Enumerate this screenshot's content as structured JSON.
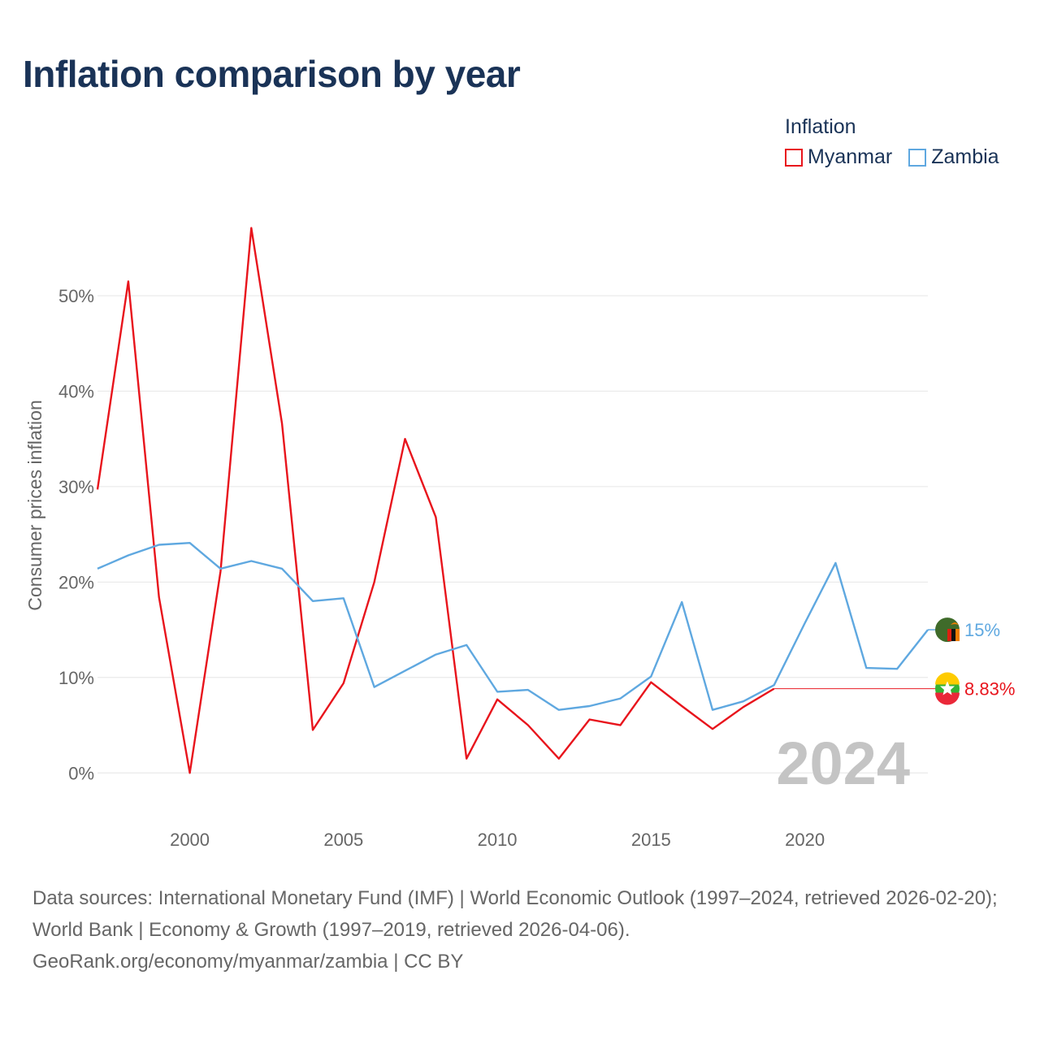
{
  "header": {
    "title": "Inflation comparison by year"
  },
  "legend": {
    "title": "Inflation",
    "items": [
      {
        "name": "Myanmar",
        "color": "#e8141c"
      },
      {
        "name": "Zambia",
        "color": "#5fa8e0"
      }
    ]
  },
  "chart_data": {
    "type": "line",
    "title": "Inflation comparison by year",
    "ylabel": "Consumer prices inflation",
    "xlabel": "",
    "xlim": [
      1997,
      2024
    ],
    "ylim": [
      -5,
      58
    ],
    "yticks": [
      0,
      10,
      20,
      30,
      40,
      50
    ],
    "ytick_labels": [
      "0%",
      "10%",
      "20%",
      "30%",
      "40%",
      "50%"
    ],
    "xticks": [
      2000,
      2005,
      2010,
      2015,
      2020
    ],
    "xtick_labels": [
      "2000",
      "2005",
      "2010",
      "2015",
      "2020"
    ],
    "year_watermark": "2024",
    "series": [
      {
        "name": "Myanmar",
        "color": "#e8141c",
        "x": [
          1997,
          1998,
          1999,
          2000,
          2001,
          2002,
          2003,
          2004,
          2005,
          2006,
          2007,
          2008,
          2009,
          2010,
          2011,
          2012,
          2013,
          2014,
          2015,
          2016,
          2017,
          2018,
          2019
        ],
        "values": [
          29.7,
          51.5,
          18.4,
          0.0,
          21.1,
          57.1,
          36.6,
          4.5,
          9.4,
          20.0,
          35.0,
          26.8,
          1.5,
          7.7,
          5.0,
          1.5,
          5.6,
          5.0,
          9.5,
          7.0,
          4.6,
          6.9,
          8.83
        ],
        "projection": {
          "x": [
            2019,
            2024
          ],
          "values": [
            8.83,
            8.83
          ]
        },
        "end_label": "8.83%",
        "marker_icon": "myanmar-flag-icon"
      },
      {
        "name": "Zambia",
        "color": "#5fa8e0",
        "x": [
          1997,
          1998,
          1999,
          2000,
          2001,
          2002,
          2003,
          2004,
          2005,
          2006,
          2007,
          2008,
          2009,
          2010,
          2011,
          2012,
          2013,
          2014,
          2015,
          2016,
          2017,
          2018,
          2019,
          2020,
          2021,
          2022,
          2023,
          2024
        ],
        "values": [
          21.4,
          22.8,
          23.9,
          24.1,
          21.4,
          22.2,
          21.4,
          18.0,
          18.3,
          9.0,
          10.7,
          12.4,
          13.4,
          8.5,
          8.7,
          6.6,
          7.0,
          7.8,
          10.1,
          17.9,
          6.6,
          7.5,
          9.2,
          15.7,
          22.0,
          11.0,
          10.9,
          15.0
        ],
        "end_label": "15%",
        "marker_icon": "zambia-flag-icon"
      }
    ]
  },
  "footer": {
    "line1": "Data sources: International Monetary Fund (IMF) | World Economic Outlook (1997–2024, retrieved 2026-02-20); World Bank | Economy & Growth (1997–2019, retrieved 2026-04-06).",
    "line2": "GeoRank.org/economy/myanmar/zambia | CC BY"
  }
}
